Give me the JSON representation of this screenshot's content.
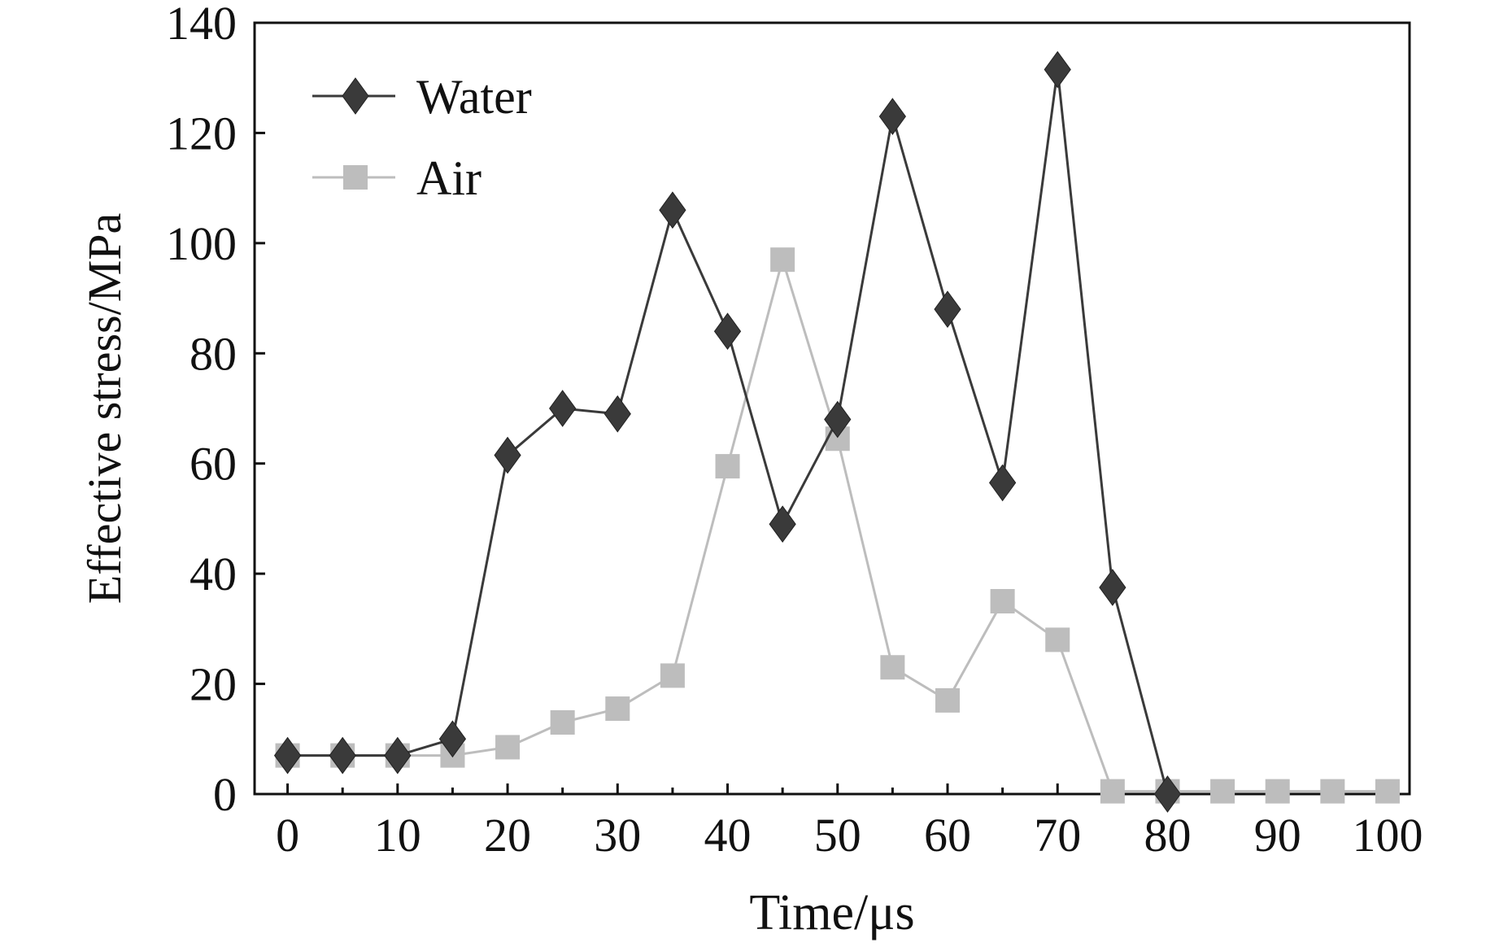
{
  "chart_data": {
    "type": "line",
    "xlabel": "Time/μs",
    "ylabel": "Effective stress/MPa",
    "xlim": [
      -3,
      102
    ],
    "ylim": [
      0,
      140
    ],
    "x_ticks": [
      0,
      10,
      20,
      30,
      40,
      50,
      60,
      70,
      80,
      90,
      100
    ],
    "y_ticks": [
      0,
      20,
      40,
      60,
      80,
      100,
      120,
      140
    ],
    "grid": false,
    "legend_position": "top-left",
    "x": [
      0,
      5,
      10,
      15,
      20,
      25,
      30,
      35,
      40,
      45,
      50,
      55,
      60,
      65,
      70,
      75,
      80,
      85,
      90,
      95,
      100
    ],
    "series": [
      {
        "name": "Water",
        "marker": "diamond",
        "color": "#3a3a3a",
        "x": [
          0,
          5,
          10,
          15,
          20,
          25,
          30,
          35,
          40,
          45,
          50,
          55,
          60,
          65,
          70,
          75,
          80
        ],
        "values": [
          7,
          7,
          7,
          10,
          61.5,
          70,
          69,
          106,
          84,
          49,
          68,
          123,
          88,
          56.5,
          131.5,
          37.5,
          0
        ]
      },
      {
        "name": "Air",
        "marker": "square",
        "color": "#bdbdbd",
        "x": [
          0,
          5,
          10,
          15,
          20,
          25,
          30,
          35,
          40,
          45,
          50,
          55,
          60,
          65,
          70,
          75,
          80,
          85,
          90,
          95,
          100
        ],
        "values": [
          7,
          7,
          7,
          7,
          8.5,
          13,
          15.5,
          21.5,
          59.5,
          97,
          64.5,
          23,
          17,
          35,
          28,
          0.5,
          0.5,
          0.5,
          0.5,
          0.5,
          0.5
        ]
      }
    ]
  }
}
